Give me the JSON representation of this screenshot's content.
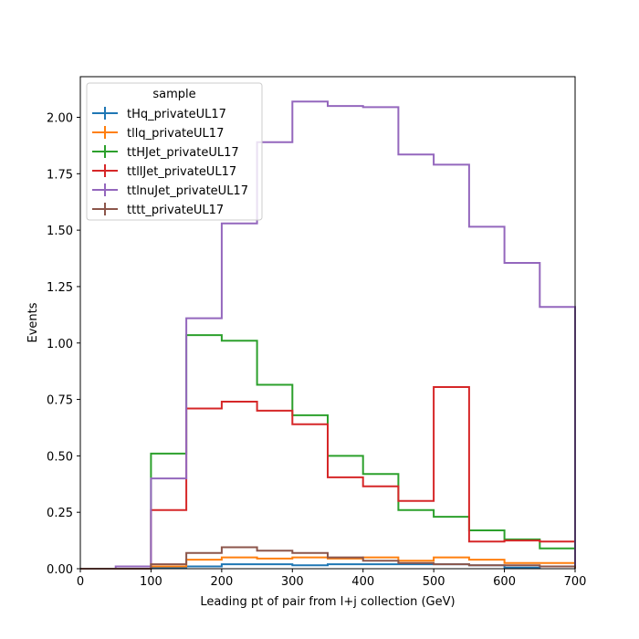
{
  "chart_data": {
    "type": "line",
    "drawstyle": "steps",
    "xlabel": "Leading pt of pair from l+j collection (GeV)",
    "ylabel": "Events",
    "xlim": [
      0,
      700
    ],
    "ylim": [
      0,
      2.18
    ],
    "x_ticks": [
      0,
      100,
      200,
      300,
      400,
      500,
      600,
      700
    ],
    "x_tick_labels": [
      "0",
      "100",
      "200",
      "300",
      "400",
      "500",
      "600",
      "700"
    ],
    "y_ticks": [
      0,
      0.25,
      0.5,
      0.75,
      1.0,
      1.25,
      1.5,
      1.75,
      2.0
    ],
    "y_tick_labels": [
      "0.00",
      "0.25",
      "0.50",
      "0.75",
      "1.00",
      "1.25",
      "1.50",
      "1.75",
      "2.00"
    ],
    "grid": false,
    "legend": {
      "title": "sample",
      "position": "top-left"
    },
    "bin_edges": [
      0,
      50,
      100,
      150,
      200,
      250,
      300,
      350,
      400,
      450,
      500,
      550,
      600,
      650,
      700
    ],
    "series": [
      {
        "name": "tHq_privateUL17",
        "color": "#1f77b4",
        "values": [
          0,
          0,
          0.005,
          0.01,
          0.02,
          0.02,
          0.015,
          0.02,
          0.02,
          0.02,
          0.02,
          0.015,
          0.005,
          0.01
        ]
      },
      {
        "name": "tllq_privateUL17",
        "color": "#ff7f0e",
        "values": [
          0,
          0,
          0.01,
          0.04,
          0.05,
          0.045,
          0.05,
          0.045,
          0.05,
          0.035,
          0.05,
          0.04,
          0.025,
          0.025
        ]
      },
      {
        "name": "ttHJet_privateUL17",
        "color": "#2ca02c",
        "values": [
          0,
          0,
          0.51,
          1.035,
          1.01,
          0.815,
          0.68,
          0.5,
          0.42,
          0.26,
          0.23,
          0.17,
          0.13,
          0.09
        ]
      },
      {
        "name": "ttllJet_privateUL17",
        "color": "#d62728",
        "values": [
          0,
          0,
          0.26,
          0.71,
          0.74,
          0.7,
          0.64,
          0.405,
          0.365,
          0.3,
          0.805,
          0.12,
          0.125,
          0.12
        ]
      },
      {
        "name": "ttlnuJet_privateUL17",
        "color": "#9467bd",
        "values": [
          0,
          0.01,
          0.4,
          1.11,
          1.53,
          1.89,
          2.07,
          2.05,
          2.045,
          1.835,
          1.79,
          1.515,
          1.355,
          1.16
        ]
      },
      {
        "name": "tttt_privateUL17",
        "color": "#8c564b",
        "values": [
          0,
          0,
          0.02,
          0.07,
          0.095,
          0.08,
          0.07,
          0.05,
          0.035,
          0.025,
          0.02,
          0.015,
          0.015,
          0.01
        ]
      }
    ]
  }
}
